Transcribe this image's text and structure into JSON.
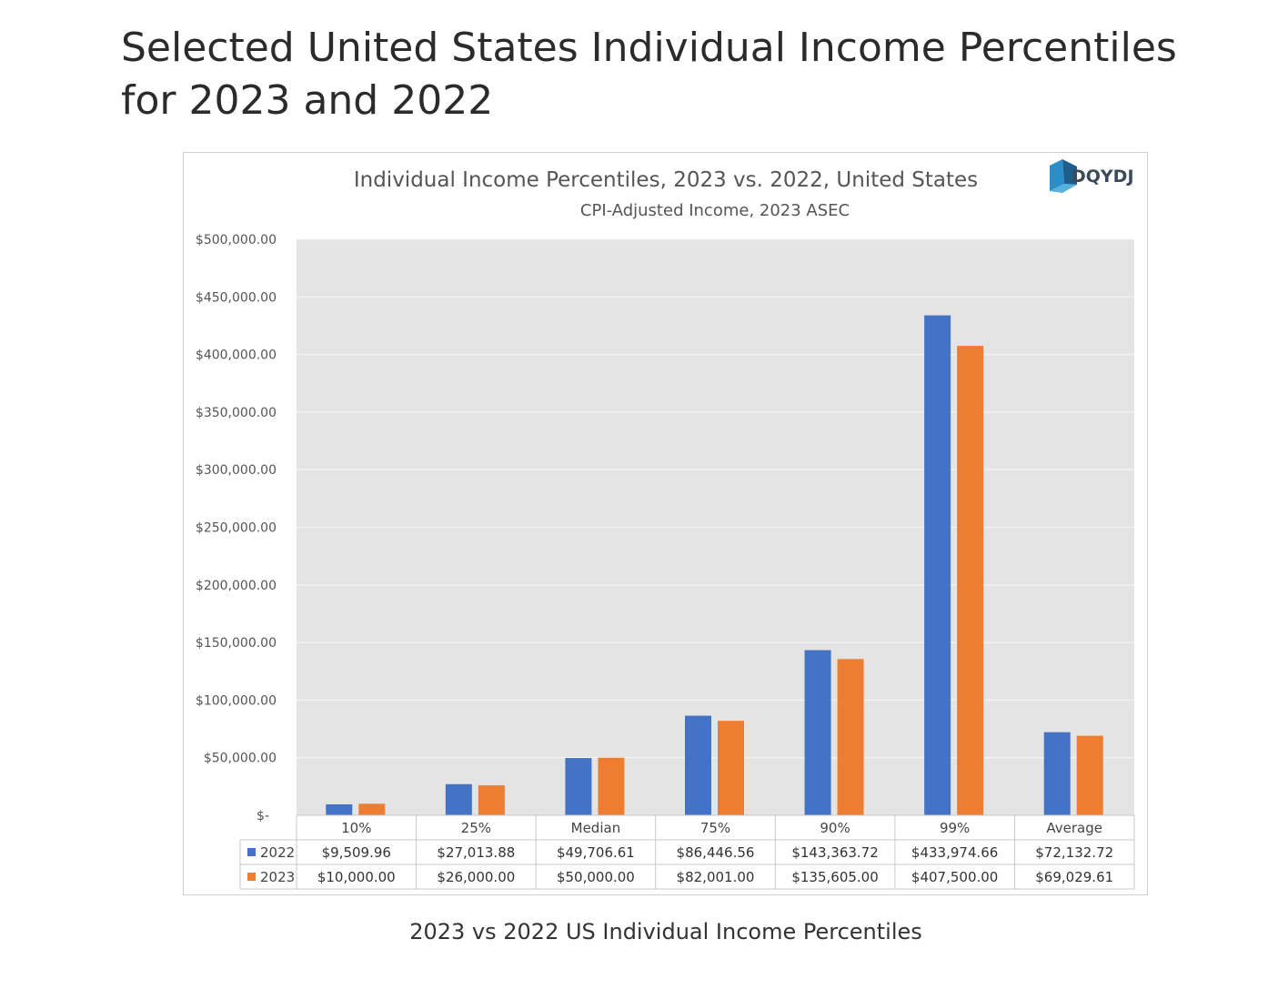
{
  "page": {
    "title": "Selected United States Individual Income Percentiles for 2023 and 2022",
    "caption": "2023 vs 2022 US Individual Income Percentiles"
  },
  "logo": {
    "text": "DQYDJ"
  },
  "colors": {
    "series_2022": "#4472c4",
    "series_2023": "#ed7d31",
    "plot_bg": "#e4e4e4",
    "grid": "#f4f4f4"
  },
  "chart_data": {
    "type": "bar",
    "title": "Individual Income Percentiles, 2023 vs. 2022, United States",
    "subtitle": "CPI-Adjusted Income, 2023 ASEC",
    "categories": [
      "10%",
      "25%",
      "Median",
      "75%",
      "90%",
      "99%",
      "Average"
    ],
    "series": [
      {
        "name": "2022",
        "values": [
          9509.96,
          27013.88,
          49706.61,
          86446.56,
          143363.72,
          433974.66,
          72132.72
        ],
        "labels": [
          "$9,509.96",
          "$27,013.88",
          "$49,706.61",
          "$86,446.56",
          "$143,363.72",
          "$433,974.66",
          "$72,132.72"
        ]
      },
      {
        "name": "2023",
        "values": [
          10000,
          26000,
          50000,
          82001,
          135605,
          407500,
          69029.61
        ],
        "labels": [
          "$10,000.00",
          "$26,000.00",
          "$50,000.00",
          "$82,001.00",
          "$135,605.00",
          "$407,500.00",
          "$69,029.61"
        ]
      }
    ],
    "ylim": [
      0,
      500000
    ],
    "yticks": [
      0,
      50000,
      100000,
      150000,
      200000,
      250000,
      300000,
      350000,
      400000,
      450000,
      500000
    ],
    "ytick_labels": [
      "$-",
      "$50,000.00",
      "$100,000.00",
      "$150,000.00",
      "$200,000.00",
      "$250,000.00",
      "$300,000.00",
      "$350,000.00",
      "$400,000.00",
      "$450,000.00",
      "$500,000.00"
    ],
    "grid": true,
    "legend": "data-table"
  }
}
